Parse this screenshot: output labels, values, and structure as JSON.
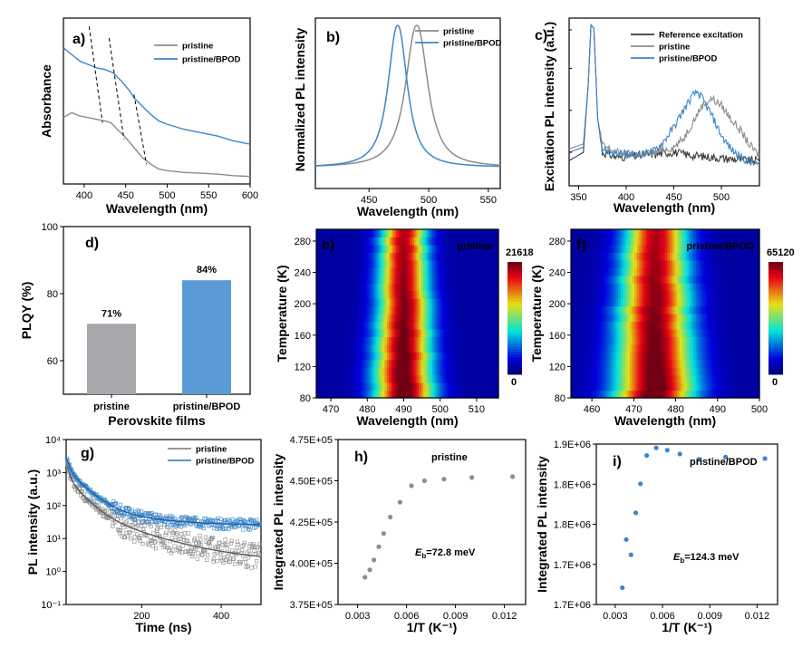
{
  "colors": {
    "pristine": "#8c8c8c",
    "bpod": "#3b86c8",
    "reference": "#3a3a3a",
    "bar_pristine": "#a6a7ab",
    "bar_bpod": "#5b9bd5"
  },
  "panels": [
    {
      "id": "a",
      "label": "a)",
      "chart_data": {
        "type": "line",
        "xlabel": "Wavelength (nm)",
        "ylabel": "Absorbance",
        "xlim": [
          375,
          600
        ],
        "xticks": [
          400,
          450,
          500,
          550,
          600
        ],
        "yticks": [],
        "ylim": [
          0,
          1
        ],
        "legend": [
          "pristine",
          "pristine/BPOD"
        ],
        "legend_position": "top-right",
        "series": [
          {
            "name": "pristine",
            "color": "#8c8c8c",
            "x": [
              375,
              385,
              395,
              405,
              415,
              425,
              432,
              440,
              450,
              460,
              470,
              480,
              490,
              500,
              520,
              540,
              560,
              580,
              600
            ],
            "y": [
              0.4,
              0.43,
              0.41,
              0.4,
              0.39,
              0.38,
              0.37,
              0.33,
              0.28,
              0.22,
              0.16,
              0.12,
              0.09,
              0.08,
              0.07,
              0.065,
              0.06,
              0.05,
              0.045
            ]
          },
          {
            "name": "pristine/BPOD",
            "color": "#3b86c8",
            "x": [
              375,
              385,
              395,
              405,
              415,
              425,
              435,
              445,
              455,
              460,
              470,
              480,
              490,
              500,
              520,
              540,
              560,
              580,
              600
            ],
            "y": [
              0.82,
              0.78,
              0.74,
              0.72,
              0.7,
              0.69,
              0.67,
              0.62,
              0.56,
              0.52,
              0.47,
              0.42,
              0.38,
              0.36,
              0.33,
              0.31,
              0.29,
              0.26,
              0.24
            ]
          }
        ],
        "guide_lines": [
          {
            "x1": 406,
            "y1": 0.95,
            "x2": 422,
            "y2": 0.37
          },
          {
            "x1": 430,
            "y1": 0.88,
            "x2": 448,
            "y2": 0.27
          },
          {
            "x1": 460,
            "y1": 0.54,
            "x2": 475,
            "y2": 0.12
          }
        ]
      }
    },
    {
      "id": "b",
      "label": "b)",
      "chart_data": {
        "type": "line",
        "xlabel": "Wavelength (nm)",
        "ylabel": "Normalized PL intensity",
        "xlim": [
          405,
          560
        ],
        "xticks": [
          450,
          500,
          550
        ],
        "yticks": [],
        "ylim": [
          0,
          1.05
        ],
        "legend": [
          "pristine",
          "pristine/BPOD"
        ],
        "legend_position": "top-right",
        "series": [
          {
            "name": "pristine",
            "color": "#8c8c8c",
            "peak": 490,
            "fwhm": 22,
            "x": [],
            "y": []
          },
          {
            "name": "pristine/BPOD",
            "color": "#3b86c8",
            "peak": 474,
            "fwhm": 19,
            "x": [],
            "y": []
          }
        ]
      }
    },
    {
      "id": "c",
      "label": "c)",
      "chart_data": {
        "type": "line",
        "xlabel": "Wavelength (nm)",
        "ylabel": "Excitation PL intensity (a.u.)",
        "xlim": [
          340,
          540
        ],
        "xticks": [
          350,
          400,
          450,
          500
        ],
        "yticks": [],
        "ylim": [
          0,
          1
        ],
        "yscale": "log",
        "legend": [
          "Reference excitation",
          "pristine",
          "pristine/BPOD"
        ],
        "legend_position": "top-right",
        "series": [
          {
            "name": "Reference excitation",
            "color": "#3a3a3a",
            "x": [
              340,
              355,
              360,
              363,
              366,
              370,
              375,
              390,
              410,
              430,
              450,
              470,
              490,
              510,
              530,
              540
            ],
            "y": [
              0.15,
              0.2,
              0.6,
              0.96,
              0.94,
              0.4,
              0.2,
              0.17,
              0.18,
              0.19,
              0.2,
              0.18,
              0.17,
              0.16,
              0.15,
              0.15
            ]
          },
          {
            "name": "pristine",
            "color": "#8c8c8c",
            "x": [
              340,
              355,
              360,
              363,
              366,
              370,
              375,
              390,
              410,
              430,
              450,
              460,
              470,
              480,
              490,
              500,
              510,
              520,
              530,
              540
            ],
            "y": [
              0.22,
              0.25,
              0.6,
              0.96,
              0.94,
              0.4,
              0.24,
              0.2,
              0.18,
              0.2,
              0.23,
              0.28,
              0.38,
              0.48,
              0.52,
              0.48,
              0.4,
              0.33,
              0.24,
              0.18
            ]
          },
          {
            "name": "pristine/BPOD",
            "color": "#3b86c8",
            "x": [
              340,
              355,
              360,
              363,
              366,
              370,
              375,
              390,
              410,
              430,
              440,
              450,
              460,
              470,
              475,
              480,
              490,
              500,
              510,
              520,
              530,
              540
            ],
            "y": [
              0.2,
              0.23,
              0.6,
              0.96,
              0.94,
              0.4,
              0.22,
              0.19,
              0.18,
              0.21,
              0.27,
              0.35,
              0.45,
              0.54,
              0.56,
              0.52,
              0.42,
              0.3,
              0.22,
              0.17,
              0.14,
              0.12
            ]
          }
        ]
      }
    },
    {
      "id": "d",
      "label": "d)",
      "chart_data": {
        "type": "bar",
        "xlabel": "Perovskite films",
        "ylabel": "PLQY (%)",
        "categories": [
          "pristine",
          "pristine/BPOD"
        ],
        "values": [
          71,
          84
        ],
        "data_labels": [
          "71%",
          "84%"
        ],
        "ylim": [
          50,
          100
        ],
        "yticks": [
          60,
          80,
          100
        ]
      }
    },
    {
      "id": "e",
      "label": "e)",
      "chart_data": {
        "type": "heatmap",
        "xlabel": "Wavelength (nm)",
        "ylabel": "Temperature (K)",
        "annotation": "pristine",
        "xlim": [
          466,
          516
        ],
        "ylim": [
          80,
          295
        ],
        "xticks": [
          470,
          480,
          490,
          500,
          510
        ],
        "yticks": [
          80,
          120,
          160,
          200,
          240,
          280
        ],
        "peak_wavelength": 490,
        "peak_width": 5.5,
        "colorbar_max": "21618",
        "colorbar_min": "0"
      }
    },
    {
      "id": "f",
      "label": "f)",
      "chart_data": {
        "type": "heatmap",
        "xlabel": "Wavelength (nm)",
        "ylabel": "Temperature (K)",
        "annotation": "pristine/BPOD",
        "xlim": [
          455,
          500
        ],
        "ylim": [
          80,
          295
        ],
        "xticks": [
          460,
          470,
          480,
          490,
          500
        ],
        "yticks": [
          80,
          120,
          160,
          200,
          240,
          280
        ],
        "peak_wavelength": 475,
        "peak_width": 6.5,
        "colorbar_max": "65120",
        "colorbar_min": "0"
      }
    },
    {
      "id": "g",
      "label": "g)",
      "chart_data": {
        "type": "scatter",
        "xlabel": "Time (ns)",
        "ylabel": "PL intensity (a.u.)",
        "xlim": [
          10,
          500
        ],
        "ylim": [
          -1,
          4
        ],
        "yscale": "log",
        "xticks": [
          200,
          400
        ],
        "yticks": [
          "10⁻¹",
          "10⁰",
          "10¹",
          "10²",
          "10³",
          "10⁴"
        ],
        "legend": [
          "pristine",
          "pristine/BPOD"
        ],
        "legend_position": "top-right",
        "series": [
          {
            "name": "pristine",
            "color": "#8c8c8c",
            "amplitudes": [
              8000,
              900,
              80
            ],
            "lifetimes": [
              6,
              30,
              110
            ],
            "background": 2
          },
          {
            "name": "pristine/BPOD",
            "color": "#3b86c8",
            "amplitudes": [
              8000,
              1500,
              90
            ],
            "lifetimes": [
              7,
              35,
              120
            ],
            "background": 25
          }
        ]
      }
    },
    {
      "id": "h",
      "label": "h)",
      "chart_data": {
        "type": "scatter",
        "xlabel": "1/T (K⁻¹)",
        "ylabel": "Integrated PL intensity",
        "annotation": "pristine",
        "eb_label": "=72.8 meV",
        "eb_symbol": "E",
        "eb_sub": "b",
        "xlim": [
          0.0018,
          0.0133
        ],
        "xticks": [
          "0.003",
          "0.006",
          "0.009",
          "0.012"
        ],
        "ylim": [
          375000,
          475000
        ],
        "yticks": [
          "3.75E+05",
          "4.00E+05",
          "4.25E+05",
          "4.50E+05",
          "4.75E+05"
        ],
        "series": [
          {
            "name": "pristine",
            "color": "#8c8c8c",
            "x": [
              0.00345,
              0.00375,
              0.004,
              0.0043,
              0.0046,
              0.005,
              0.0056,
              0.0063,
              0.0071,
              0.0083,
              0.01,
              0.0125
            ],
            "y": [
              391500,
              396000,
              402000,
              410000,
              418000,
              428000,
              437000,
              447000,
              450000,
              451000,
              452000,
              452500
            ]
          }
        ],
        "fit": {
          "color": "#8c8c8c",
          "i0": 452500,
          "a": 7000000,
          "eb": 72.8
        }
      }
    },
    {
      "id": "i",
      "label": "i)",
      "chart_data": {
        "type": "scatter",
        "xlabel": "1/T (K⁻¹)",
        "ylabel": "Integrated PL intensity",
        "annotation": "pristine/BPOD",
        "eb_label": "=124.3 meV",
        "eb_symbol": "E",
        "eb_sub": "b",
        "xlim": [
          0.0018,
          0.0133
        ],
        "xticks": [
          "0.003",
          "0.006",
          "0.009",
          "0.012"
        ],
        "ylim": [
          1650000,
          1860000
        ],
        "yticks": [
          "1.7E+06",
          "1.7E+06",
          "1.8E+06",
          "1.8E+06",
          "1.9E+06"
        ],
        "series": [
          {
            "name": "pristine/BPOD",
            "color": "#3b86c8",
            "x": [
              0.00345,
              0.0037,
              0.004,
              0.0043,
              0.0046,
              0.005,
              0.0056,
              0.0063,
              0.0071,
              0.0083,
              0.01,
              0.0125
            ],
            "y": [
              1672000,
              1735000,
              1715000,
              1770000,
              1808000,
              1845000,
              1855000,
              1852000,
              1847000,
              1840000,
              1843000,
              1841000
            ]
          }
        ],
        "fit": {
          "color": "#3b86c8",
          "i0": 1842000,
          "a": 10000000000,
          "eb": 124.3
        }
      }
    }
  ]
}
